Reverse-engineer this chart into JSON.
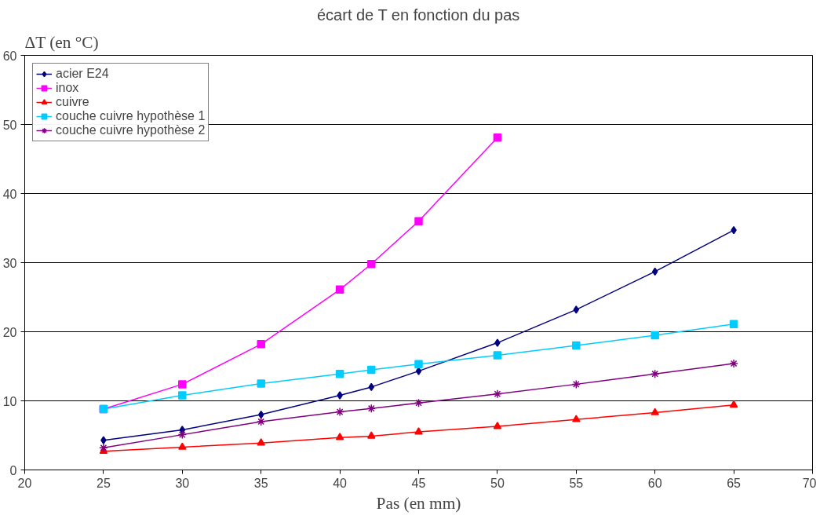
{
  "chart_data": {
    "type": "line",
    "title": "écart de T en fonction du pas",
    "xlabel": "Pas (en mm)",
    "ylabel": "ΔT (en °C)",
    "x": [
      25,
      30,
      35,
      40,
      42,
      45,
      50,
      55,
      60,
      65
    ],
    "series": [
      {
        "name": "acier E24",
        "color": "#000080",
        "marker": "diamond",
        "values": [
          4.3,
          5.8,
          8.0,
          10.8,
          12.0,
          14.3,
          18.4,
          23.2,
          28.7,
          34.7
        ]
      },
      {
        "name": "inox",
        "color": "#ff00ff",
        "marker": "square",
        "x": [
          25,
          30,
          35,
          40,
          42,
          45,
          50
        ],
        "values": [
          8.8,
          12.4,
          18.2,
          26.1,
          29.8,
          36.0,
          48.1
        ]
      },
      {
        "name": "cuivre",
        "color": "#ff0000",
        "marker": "triangle",
        "values": [
          2.7,
          3.3,
          3.9,
          4.7,
          4.9,
          5.5,
          6.3,
          7.3,
          8.3,
          9.4
        ]
      },
      {
        "name": "couche cuivre hypothèse 1",
        "color": "#00ccff",
        "marker": "square",
        "values": [
          8.8,
          10.8,
          12.5,
          13.9,
          14.5,
          15.3,
          16.6,
          18.0,
          19.5,
          21.1
        ]
      },
      {
        "name": "couche cuivre hypothèse 2",
        "color": "#800080",
        "marker": "cross",
        "values": [
          3.2,
          5.1,
          7.0,
          8.4,
          8.9,
          9.7,
          11.0,
          12.4,
          13.9,
          15.4
        ]
      }
    ],
    "xlim": [
      20,
      70
    ],
    "xticks": [
      20,
      25,
      30,
      35,
      40,
      45,
      50,
      55,
      60,
      65,
      70
    ],
    "ylim": [
      0,
      60
    ],
    "yticks": [
      0,
      10,
      20,
      30,
      40,
      50,
      60
    ],
    "grid": "y",
    "legend": "top left",
    "line_style": "solid"
  }
}
